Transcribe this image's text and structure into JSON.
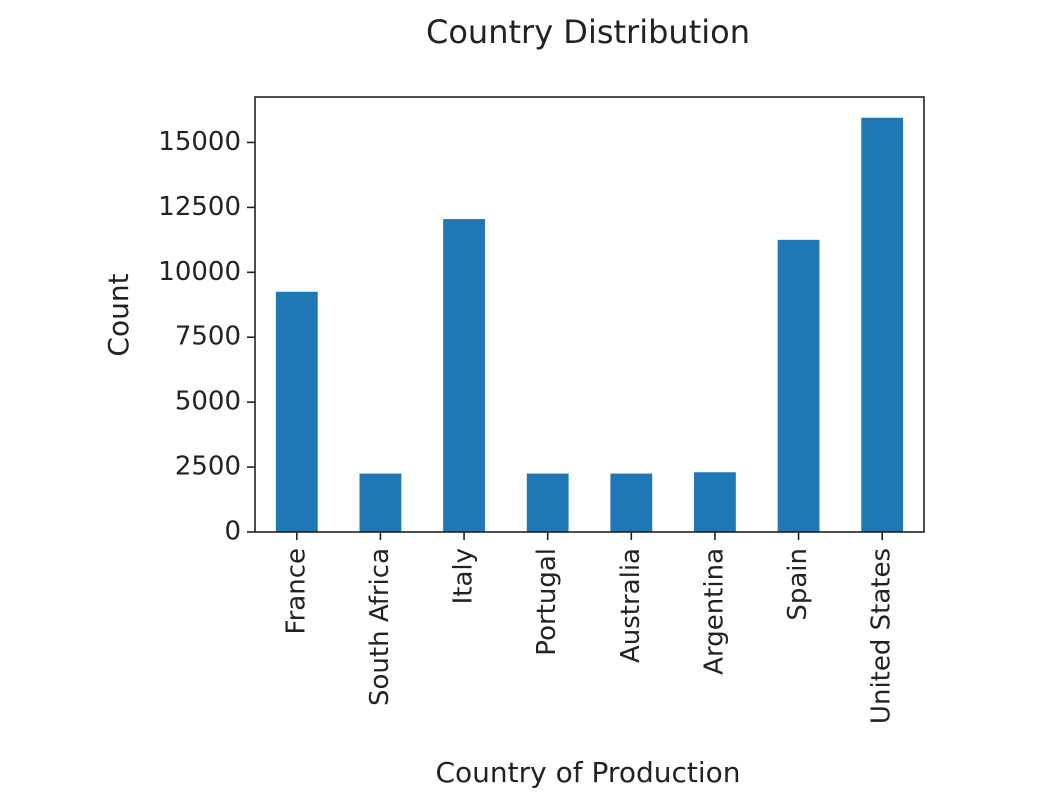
{
  "chart_data": {
    "type": "bar",
    "title": "Country Distribution",
    "xlabel": "Country of Production",
    "ylabel": "Count",
    "categories": [
      "France",
      "South Africa",
      "Italy",
      "Portugal",
      "Australia",
      "Argentina",
      "Spain",
      "United States"
    ],
    "values": [
      9250,
      2250,
      12050,
      2250,
      2250,
      2300,
      11250,
      15950
    ],
    "yticks": [
      "0",
      "2500",
      "5000",
      "7500",
      "10000",
      "12500",
      "15000"
    ],
    "ylim": [
      0,
      16750
    ],
    "grid": false,
    "legend": "none",
    "colors": {
      "bar": "#1f77b4"
    }
  }
}
